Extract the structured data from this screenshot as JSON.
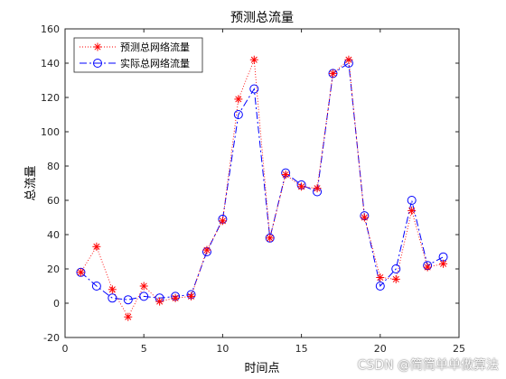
{
  "chart_data": {
    "type": "line",
    "title": "预测总流量",
    "xlabel": "时间点",
    "ylabel": "总流量",
    "xlim": [
      0,
      25
    ],
    "ylim": [
      -20,
      160
    ],
    "x_ticks": [
      0,
      5,
      10,
      15,
      20,
      25
    ],
    "y_ticks": [
      -20,
      0,
      20,
      40,
      60,
      80,
      100,
      120,
      140,
      160
    ],
    "grid": false,
    "legend_position": "top-left",
    "x": [
      1,
      2,
      3,
      4,
      5,
      6,
      7,
      8,
      9,
      10,
      11,
      12,
      13,
      14,
      15,
      16,
      17,
      18,
      19,
      20,
      21,
      22,
      23,
      24
    ],
    "series": [
      {
        "name": "预测总网络流量",
        "color": "#ff0000",
        "line_style": "dotted",
        "marker": "asterisk",
        "values": [
          18,
          33,
          8,
          -8,
          10,
          1,
          3,
          4,
          31,
          48,
          119,
          142,
          38,
          75,
          68,
          67,
          134,
          142,
          50,
          15,
          14,
          54,
          21,
          23
        ]
      },
      {
        "name": "实际总网络流量",
        "color": "#0000ff",
        "line_style": "dashdot",
        "marker": "circle",
        "values": [
          18,
          10,
          3,
          2,
          4,
          3,
          4,
          5,
          30,
          49,
          110,
          125,
          38,
          76,
          69,
          65,
          134,
          140,
          51,
          10,
          20,
          60,
          22,
          27
        ]
      }
    ]
  },
  "watermark": "CSDN @简简单单做算法"
}
